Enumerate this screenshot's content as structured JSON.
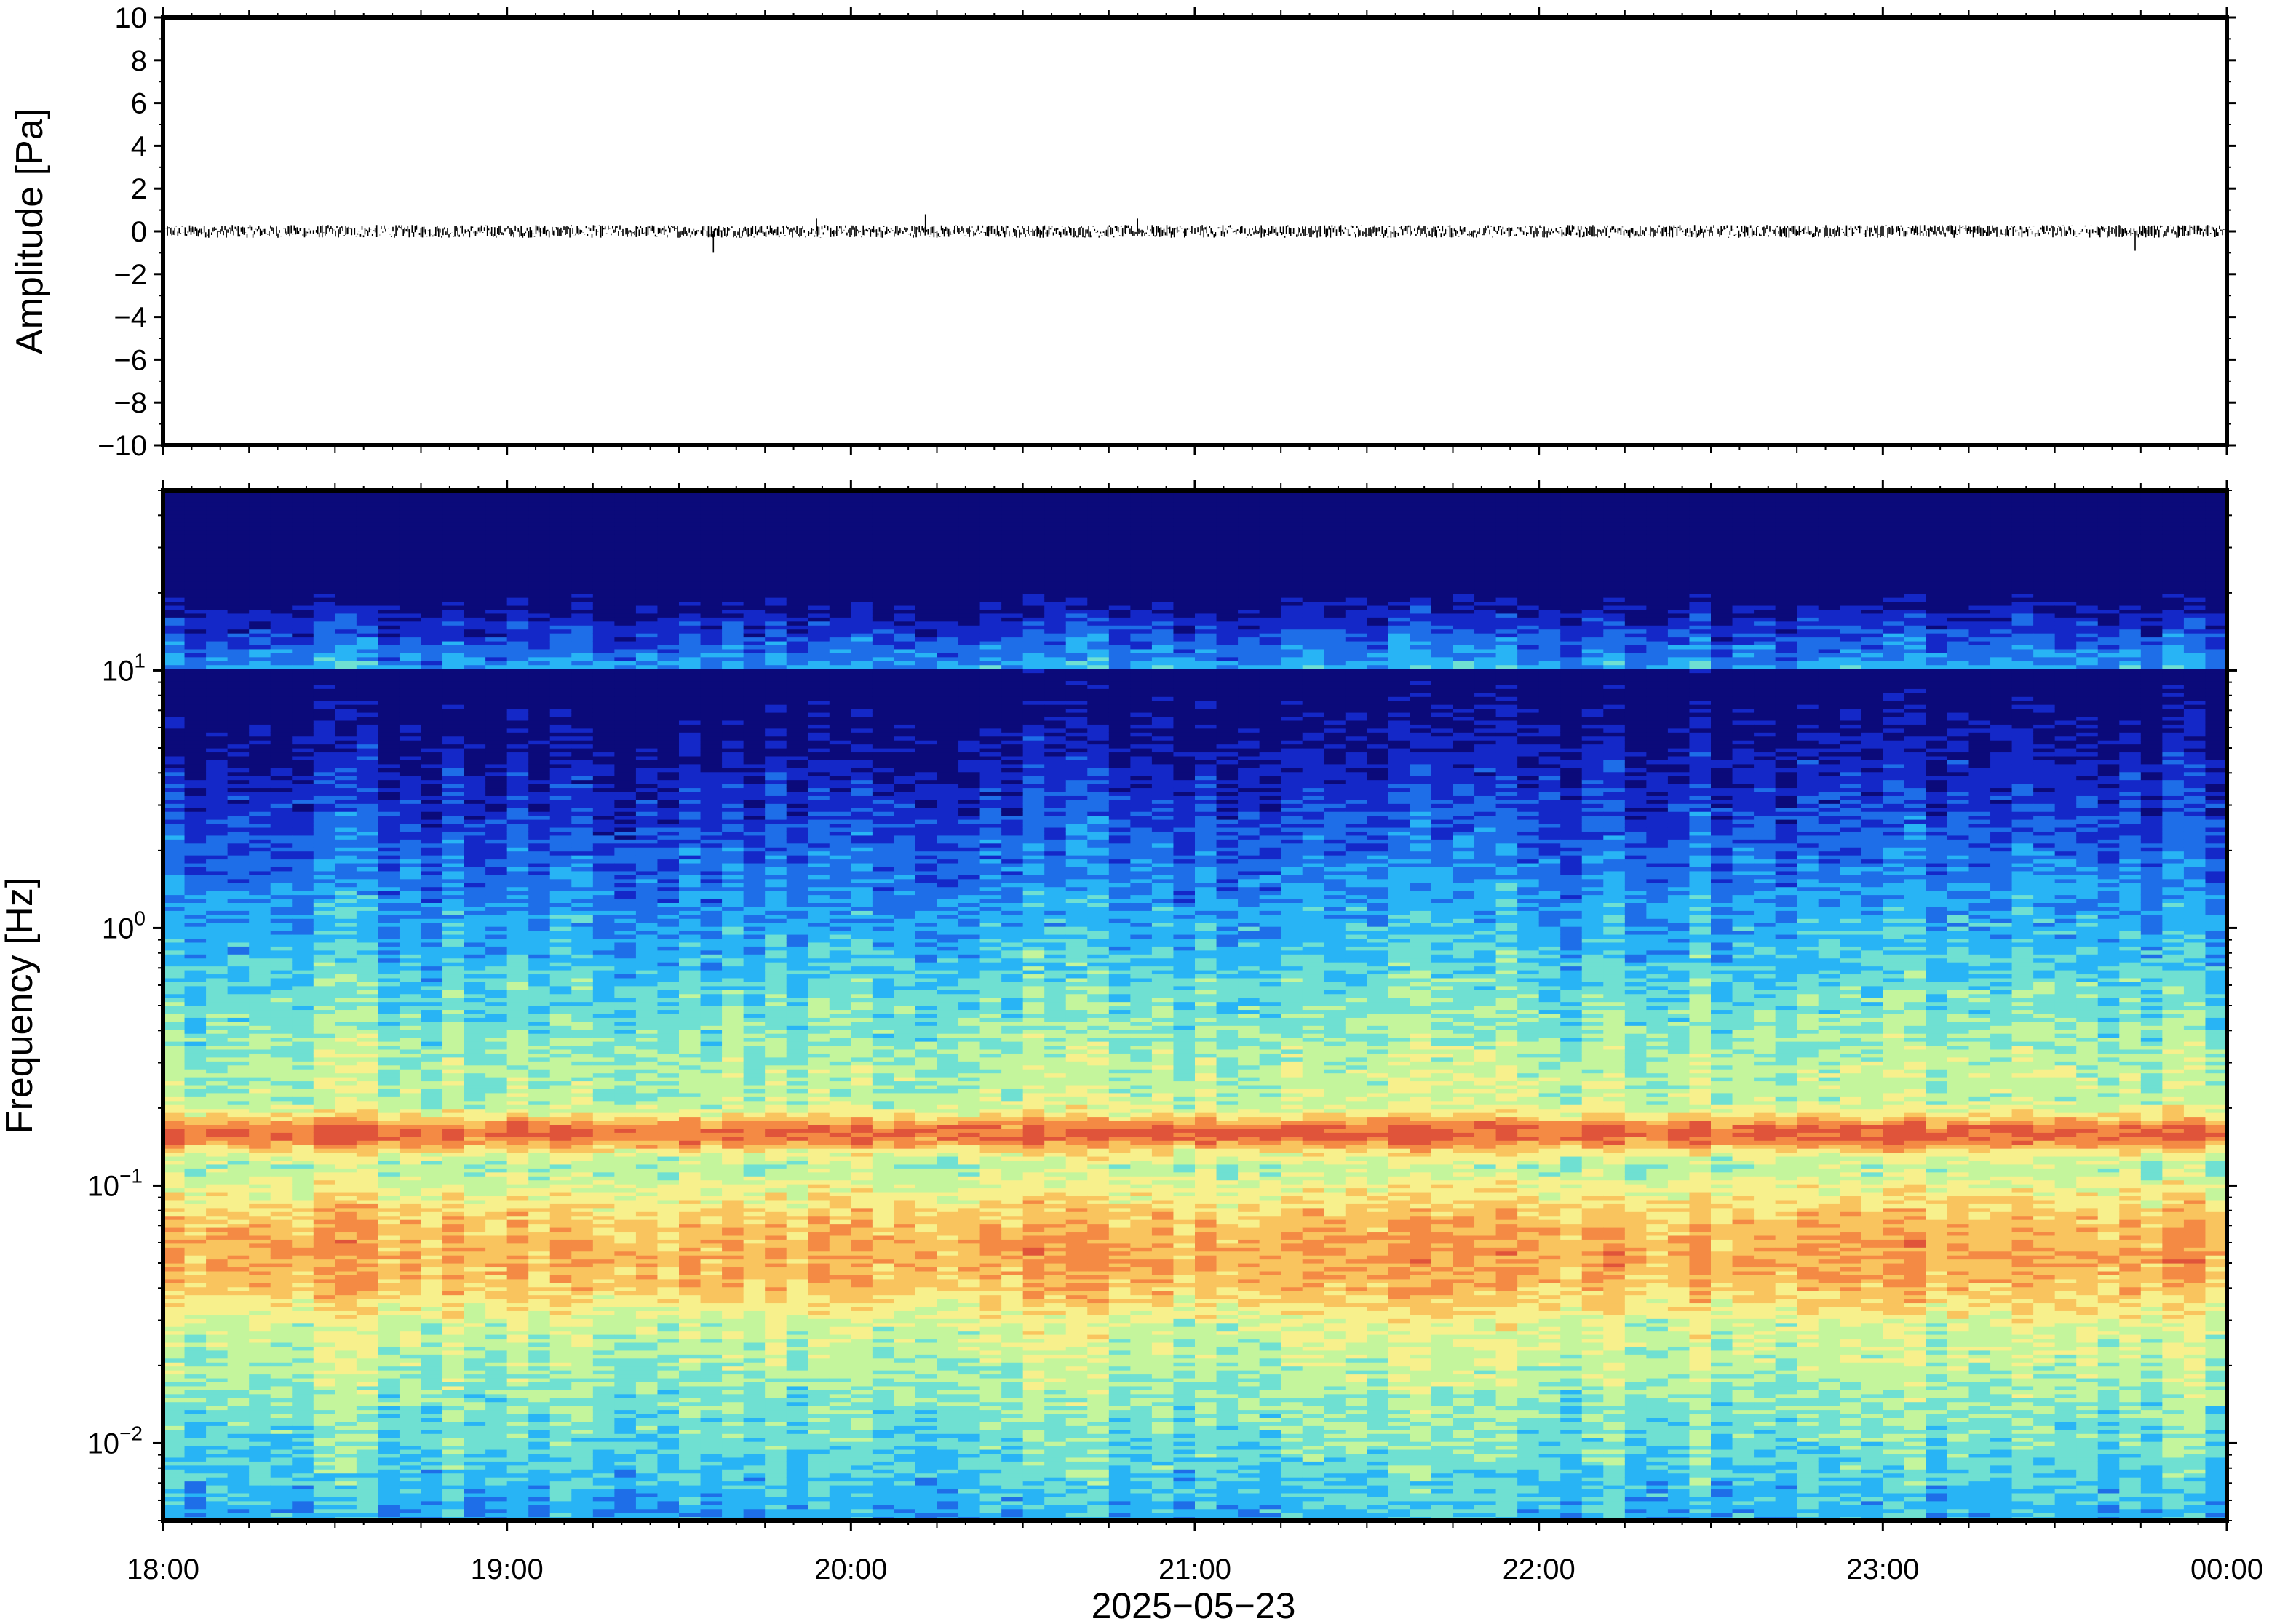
{
  "chart_data": [
    {
      "type": "line",
      "title": "",
      "xlabel": "",
      "ylabel": "Amplitude [Pa]",
      "ylim": [
        -10,
        10
      ],
      "y_ticks": [
        10,
        8,
        6,
        4,
        2,
        0,
        -2,
        -4,
        -6,
        -8,
        -10
      ],
      "y_tick_labels": [
        "10",
        "8",
        "6",
        "4",
        "2",
        "0",
        "−2",
        "−4",
        "−6",
        "−8",
        "−10"
      ],
      "xlim": [
        "2025-05-23T18:00",
        "2025-05-24T00:00"
      ],
      "grid": false,
      "series": [
        {
          "color": "#000000",
          "description_values": {
            "baseline": 0.0,
            "typical_envelope": [
              -0.3,
              0.3
            ],
            "spikes": [
              {
                "time": "2025-05-23T19:36",
                "min": -1.0
              },
              {
                "time": "2025-05-23T19:54",
                "max": 0.6
              },
              {
                "time": "2025-05-23T20:13",
                "max": 0.8
              },
              {
                "time": "2025-05-23T20:50",
                "max": 0.6
              },
              {
                "time": "2025-05-23T23:44",
                "min": -0.9
              }
            ]
          }
        }
      ]
    },
    {
      "type": "heatmap",
      "title": "",
      "xlabel": "",
      "ylabel": "Frequency [Hz]",
      "y_scale": "log",
      "ylim": [
        0.005,
        50
      ],
      "y_ticks": [
        0.01,
        0.1,
        1,
        10
      ],
      "y_tick_labels": [
        {
          "base": "10",
          "exp": "−2"
        },
        {
          "base": "10",
          "exp": "−1"
        },
        {
          "base": "10",
          "exp": "0"
        },
        {
          "base": "10",
          "exp": "1"
        }
      ],
      "xlim": [
        "2025-05-23T18:00",
        "2025-05-24T00:00"
      ],
      "colormap": [
        "#0b0a7a",
        "#1428c8",
        "#1e6ee8",
        "#28b4f5",
        "#6fe0d2",
        "#c4f59c",
        "#f7f08c",
        "#f9c45e",
        "#f48a44",
        "#e0543a"
      ],
      "features": {
        "microseism_peak_hz": 0.16,
        "secondary_energy_band_hz": [
          0.03,
          0.1
        ],
        "low_level_above_hz": 20
      }
    }
  ],
  "x_axis": {
    "tick_labels": [
      "18:00",
      "19:00",
      "20:00",
      "21:00",
      "22:00",
      "23:00",
      "00:00"
    ],
    "date_label": "2025−05−23",
    "tick_hours": [
      0,
      1,
      2,
      3,
      4,
      5,
      6
    ]
  }
}
